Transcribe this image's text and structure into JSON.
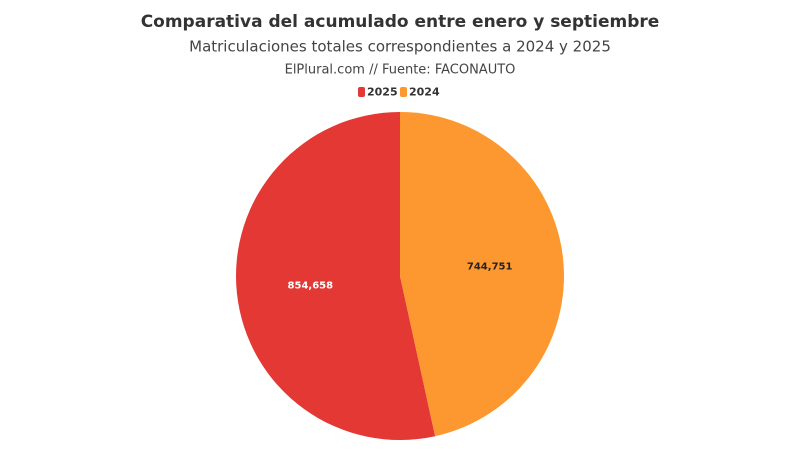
{
  "chart_data": {
    "type": "pie",
    "title": "Comparativa del acumulado entre enero y septiembre",
    "subtitle": "Matriculaciones totales correspondientes a 2024 y 2025",
    "source": "ElPlural.com // Fuente: FACONAUTO",
    "categories": [
      "2025",
      "2024"
    ],
    "values": [
      854658,
      744751
    ],
    "value_labels": [
      "854,658",
      "744,751"
    ],
    "colors": [
      "#e43834",
      "#fd9830"
    ],
    "legend": "top"
  }
}
